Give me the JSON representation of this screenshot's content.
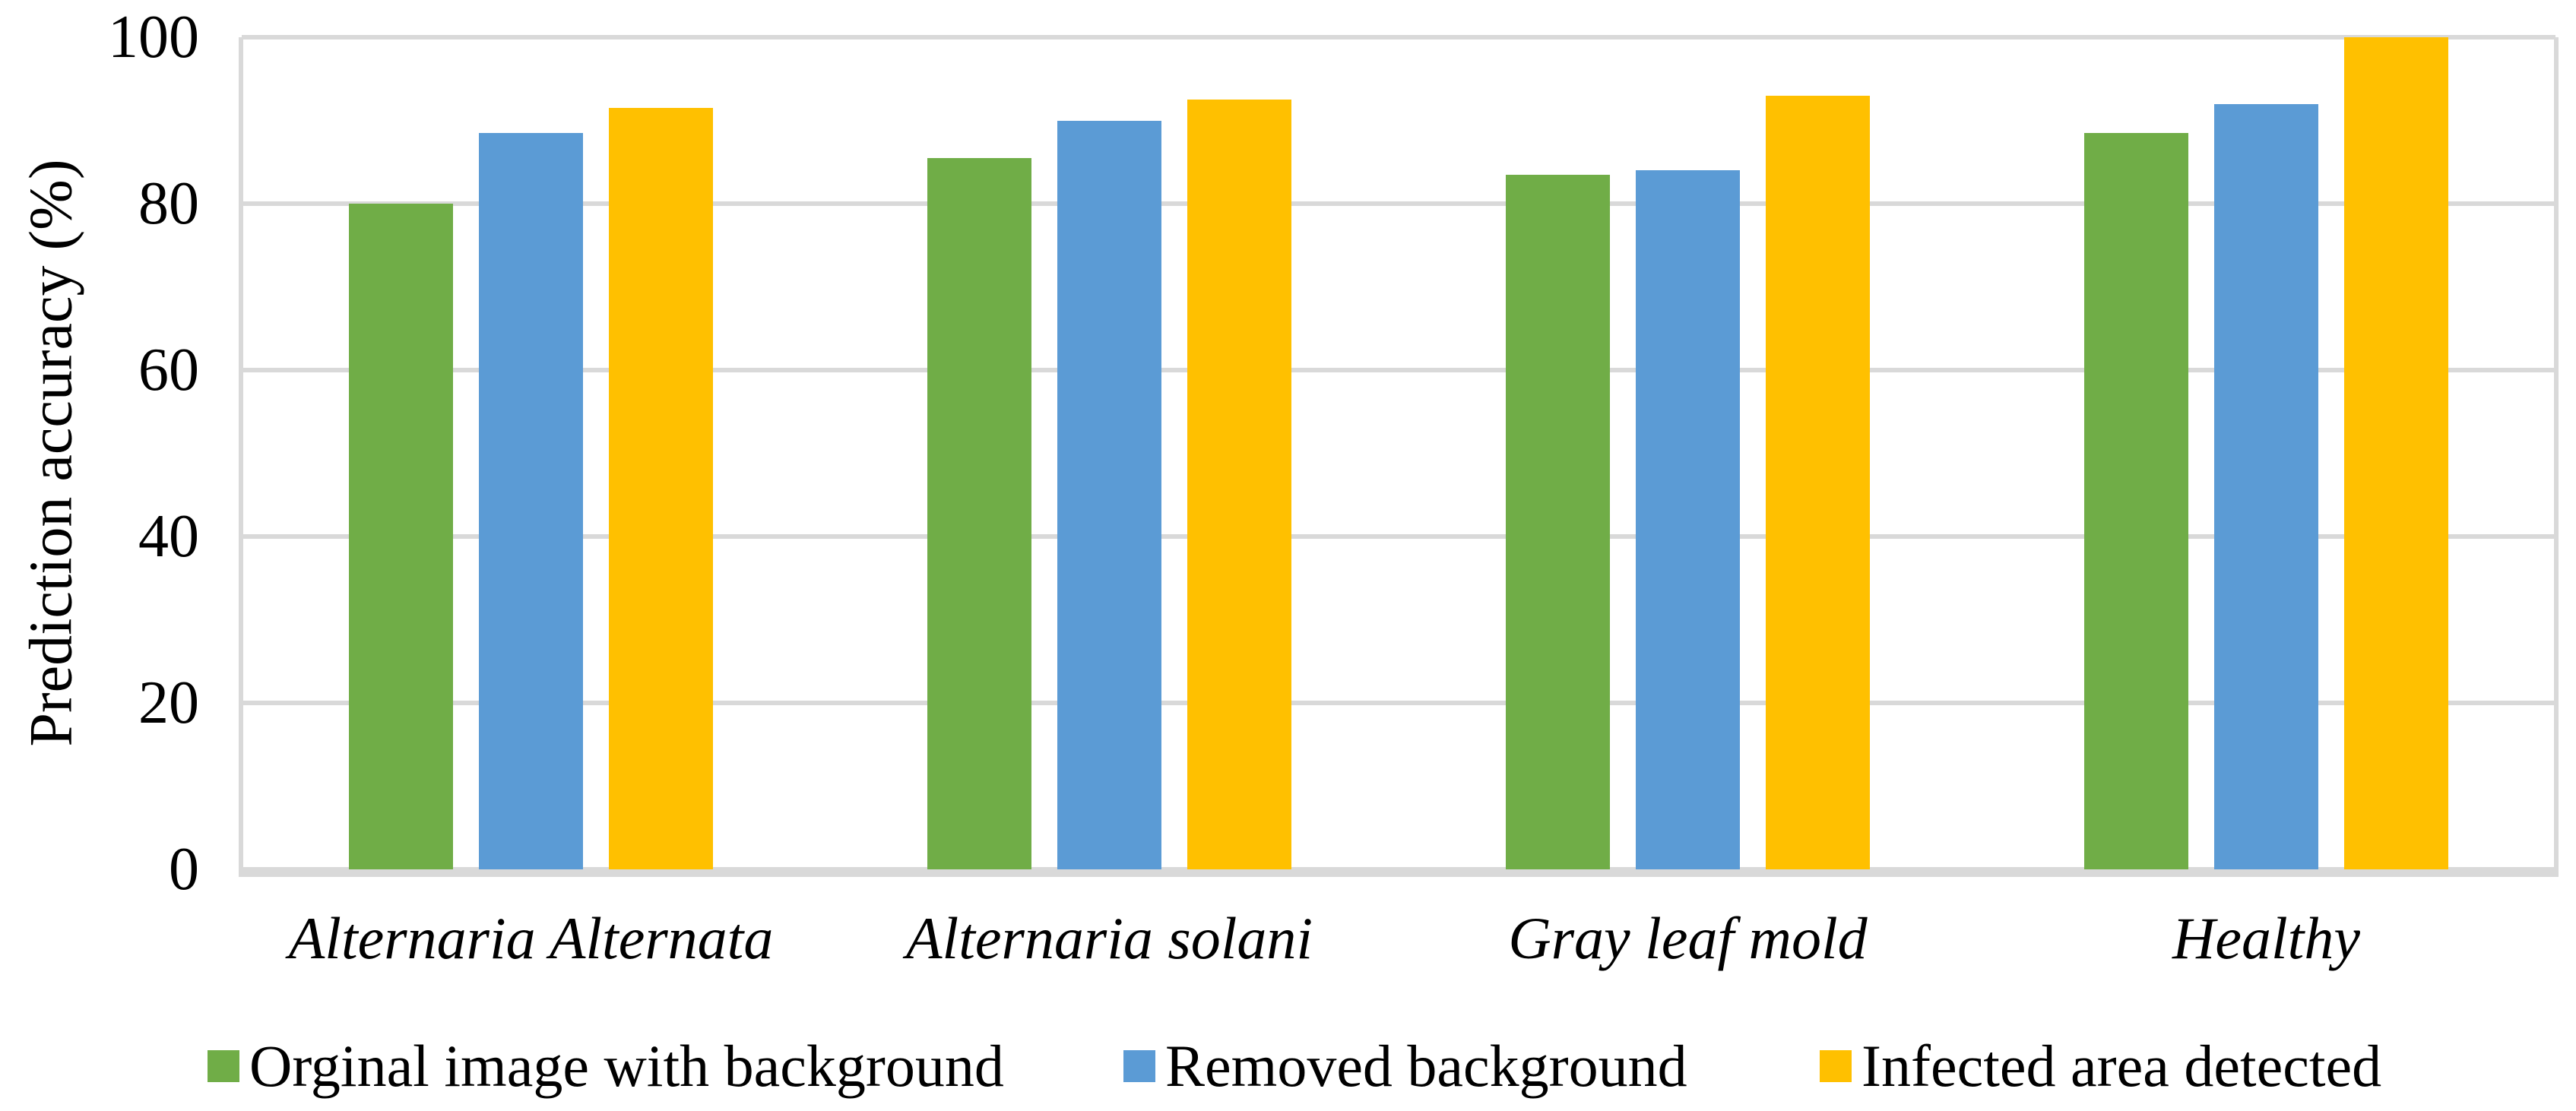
{
  "chart_data": {
    "type": "bar",
    "title": "",
    "ylabel": "Prediction accuracy (%)",
    "xlabel": "",
    "categories": [
      "Alternaria Alternata",
      "Alternaria solani",
      "Gray leaf mold",
      "Healthy"
    ],
    "series": [
      {
        "name": "Orginal image with background",
        "color": "#70AD47",
        "values": [
          80,
          85.5,
          83.5,
          88.5
        ]
      },
      {
        "name": "Removed background",
        "color": "#5B9BD5",
        "values": [
          88.5,
          90,
          84,
          92
        ]
      },
      {
        "name": "Infected area detected",
        "color": "#FFC000",
        "values": [
          91.5,
          92.5,
          93,
          100
        ]
      }
    ],
    "ylim": [
      0,
      100
    ],
    "yticks": [
      0,
      20,
      40,
      60,
      80,
      100
    ],
    "grid": "horizontal",
    "gridline_color": "#D9D9D9",
    "axis_line_color": "#D9D9D9",
    "text_color": "#000000",
    "background_color": "#FFFFFF",
    "legend_position": "bottom",
    "category_label_style": "italic"
  }
}
